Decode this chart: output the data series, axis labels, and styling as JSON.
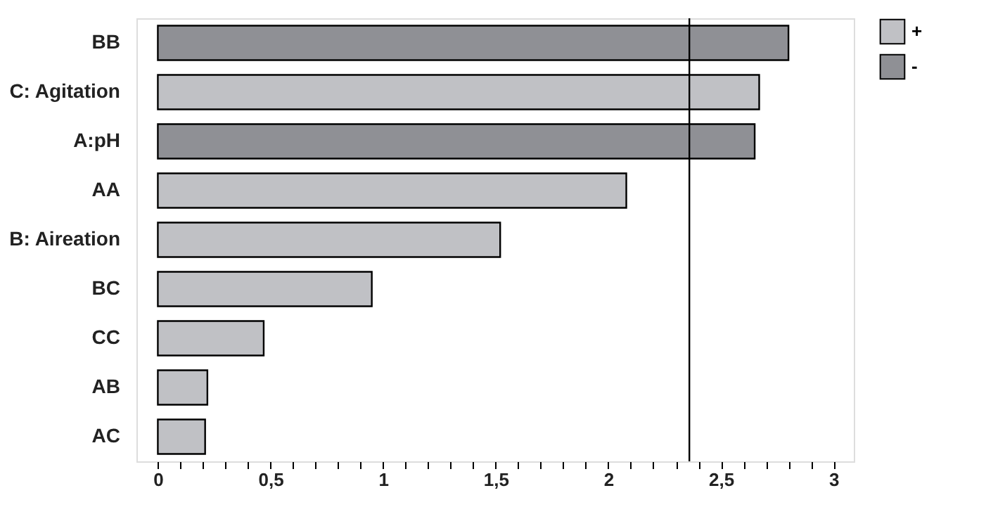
{
  "chart_data": {
    "type": "bar",
    "orientation": "horizontal",
    "categories": [
      "BB",
      "C: Agitation",
      "A:pH",
      "AA",
      "B: Aireation",
      "BC",
      "CC",
      "AB",
      "AC"
    ],
    "series": [
      {
        "name": "+",
        "color": "#c0c1c5",
        "values": [
          null,
          2.67,
          null,
          2.08,
          1.52,
          0.95,
          0.47,
          0.22,
          0.21
        ]
      },
      {
        "name": "-",
        "color": "#8f9095",
        "values": [
          2.8,
          null,
          2.65,
          null,
          null,
          null,
          null,
          null,
          null
        ]
      }
    ],
    "xlim": [
      -0.095,
      3.09
    ],
    "xticks": [
      0,
      {
        "value": 0.1,
        "label": null
      },
      {
        "value": 0.2,
        "label": null
      },
      {
        "value": 0.3,
        "label": null
      },
      {
        "value": 0.4,
        "label": null
      },
      {
        "value": 0.5,
        "label": "0,5"
      },
      {
        "value": 0.6,
        "label": null
      },
      {
        "value": 0.7,
        "label": null
      },
      {
        "value": 0.8,
        "label": null
      },
      {
        "value": 0.9,
        "label": null
      },
      1,
      {
        "value": 1.1,
        "label": null
      },
      {
        "value": 1.2,
        "label": null
      },
      {
        "value": 1.3,
        "label": null
      },
      {
        "value": 1.4,
        "label": null
      },
      {
        "value": 1.5,
        "label": "1,5"
      },
      {
        "value": 1.6,
        "label": null
      },
      {
        "value": 1.7,
        "label": null
      },
      {
        "value": 1.8,
        "label": null
      },
      {
        "value": 1.9,
        "label": null
      },
      2,
      {
        "value": 2.1,
        "label": null
      },
      {
        "value": 2.2,
        "label": null
      },
      {
        "value": 2.3,
        "label": null
      },
      {
        "value": 2.4,
        "label": null
      },
      {
        "value": 2.5,
        "label": "2,5"
      },
      {
        "value": 2.6,
        "label": null
      },
      {
        "value": 2.7,
        "label": null
      },
      {
        "value": 2.8,
        "label": null
      },
      {
        "value": 2.9,
        "label": null
      },
      3
    ],
    "ref_lines": [
      {
        "axis": "x",
        "value": 2.36,
        "color": "#000000"
      }
    ],
    "grid": false,
    "legend": "top right"
  }
}
